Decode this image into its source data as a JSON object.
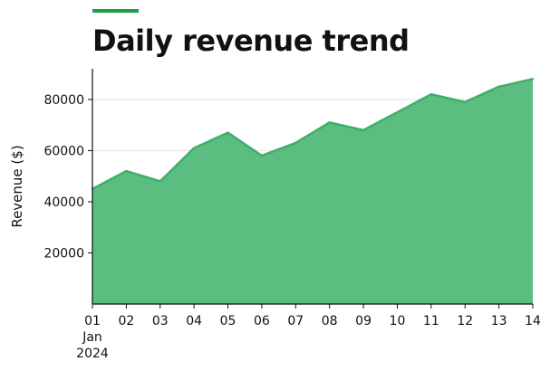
{
  "colors": {
    "accent": "#1f9e4a",
    "area_fill": "#5bbd80",
    "area_line": "#3daf66",
    "axis": "#111111",
    "grid": "#e3e3e3",
    "text": "#111111"
  },
  "chart_data": {
    "type": "area",
    "title": "Daily revenue trend",
    "xlabel": "",
    "ylabel": "Revenue ($)",
    "x": [
      "2024-01-01",
      "2024-01-02",
      "2024-01-03",
      "2024-01-04",
      "2024-01-05",
      "2024-01-06",
      "2024-01-07",
      "2024-01-08",
      "2024-01-09",
      "2024-01-10",
      "2024-01-11",
      "2024-01-12",
      "2024-01-13",
      "2024-01-14"
    ],
    "x_tick_labels": [
      "01",
      "02",
      "03",
      "04",
      "05",
      "06",
      "07",
      "08",
      "09",
      "10",
      "11",
      "12",
      "13",
      "14"
    ],
    "x_tick_sublabel": [
      "Jan",
      "2024"
    ],
    "values": [
      45000,
      52000,
      48000,
      61000,
      67000,
      58000,
      63000,
      71000,
      68000,
      75000,
      82000,
      79000,
      85000,
      88000
    ],
    "y_ticks": [
      20000,
      40000,
      60000,
      80000
    ],
    "ylim": [
      0,
      92000
    ],
    "grid": "horizontal",
    "legend": "none"
  }
}
